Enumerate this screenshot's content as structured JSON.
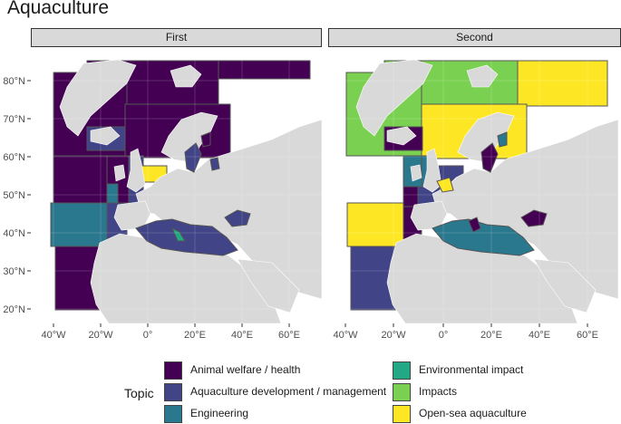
{
  "title": "Aquaculture",
  "panels": [
    {
      "strip_label": "First"
    },
    {
      "strip_label": "Second"
    }
  ],
  "axes": {
    "y_ticks": [
      "80°N",
      "70°N",
      "60°N",
      "50°N",
      "40°N",
      "30°N",
      "20°N"
    ],
    "x_ticks": [
      "40°W",
      "20°W",
      "0°",
      "20°E",
      "40°E",
      "60°E"
    ]
  },
  "legend": {
    "title": "Topic",
    "items": [
      {
        "label": "Animal welfare / health",
        "color": "#440154"
      },
      {
        "label": "Aquaculture development / management",
        "color": "#414487"
      },
      {
        "label": "Engineering",
        "color": "#2a788e"
      },
      {
        "label": "Environmental impact",
        "color": "#22a884"
      },
      {
        "label": "Impacts",
        "color": "#7ad151"
      },
      {
        "label": "Open-sea aquaculture",
        "color": "#fde725"
      }
    ]
  },
  "colors": {
    "land": "#d9d9d9",
    "background": "#ffffff",
    "border": "#555555"
  }
}
